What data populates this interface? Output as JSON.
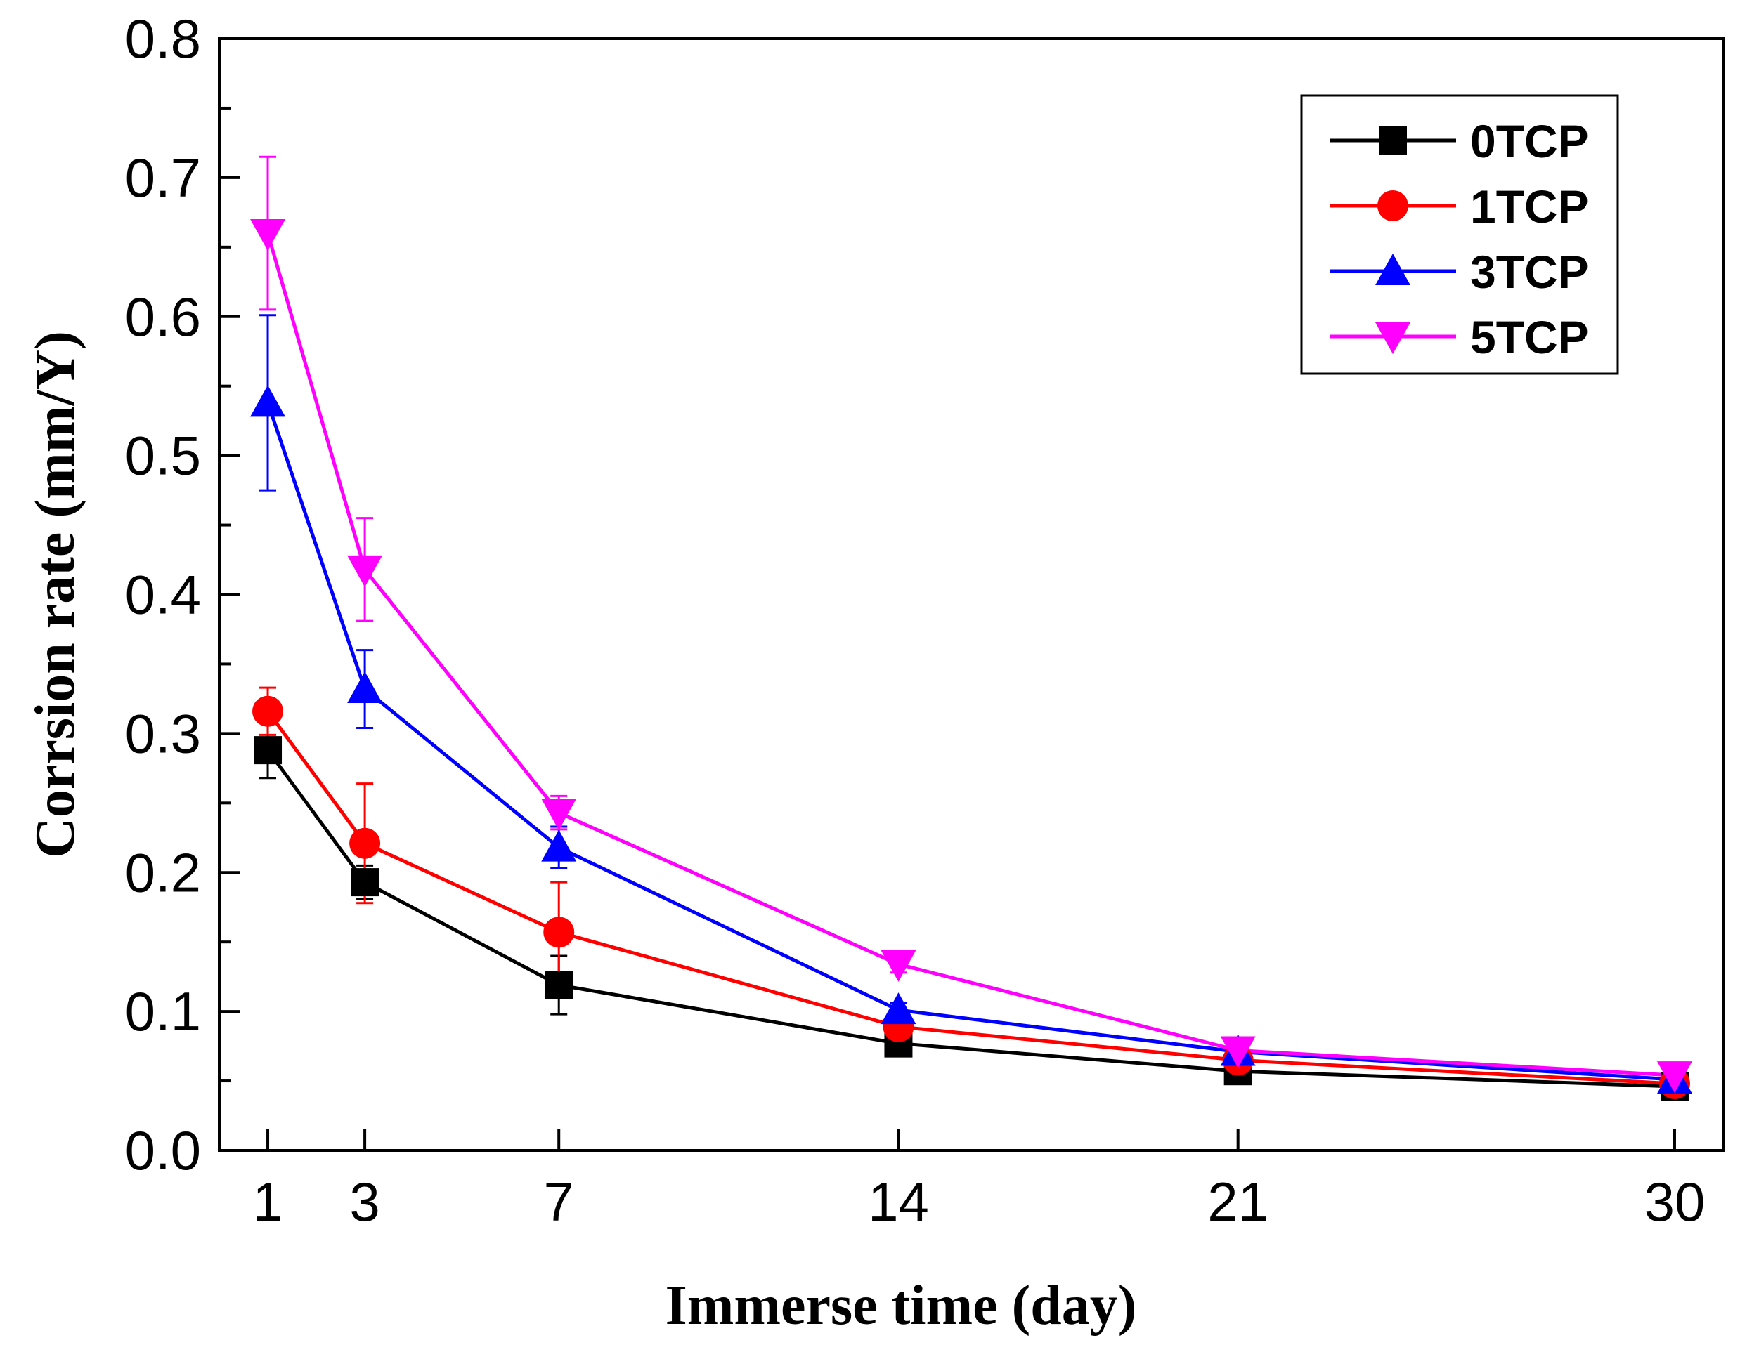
{
  "chart_data": {
    "type": "line",
    "title": "",
    "xlabel": "Immerse time (day)",
    "ylabel": "Corrsion rate (mm/Y)",
    "x": [
      1,
      3,
      7,
      14,
      21,
      30
    ],
    "x_tick_labels": [
      "1",
      "3",
      "7",
      "14",
      "21",
      "30"
    ],
    "y_tick_labels": [
      "0.0",
      "0.1",
      "0.2",
      "0.3",
      "0.4",
      "0.5",
      "0.6",
      "0.7",
      "0.8"
    ],
    "xlim": [
      0,
      31
    ],
    "ylim": [
      0,
      0.8
    ],
    "grid": false,
    "legend_position": "top-right",
    "series": [
      {
        "name": "0TCP",
        "color": "#000000",
        "marker": "square",
        "values": [
          0.288,
          0.193,
          0.119,
          0.077,
          0.057,
          0.046
        ],
        "errors": [
          0.02,
          0.012,
          0.021,
          0.004,
          0.004,
          0.003
        ]
      },
      {
        "name": "1TCP",
        "color": "#ff0000",
        "marker": "circle",
        "values": [
          0.316,
          0.221,
          0.157,
          0.089,
          0.065,
          0.048
        ],
        "errors": [
          0.017,
          0.043,
          0.036,
          0.005,
          0.004,
          0.003
        ]
      },
      {
        "name": "3TCP",
        "color": "#0000ff",
        "marker": "triangle-up",
        "values": [
          0.538,
          0.332,
          0.218,
          0.101,
          0.071,
          0.051
        ],
        "errors": [
          0.063,
          0.028,
          0.015,
          0.005,
          0.004,
          0.003
        ]
      },
      {
        "name": "5TCP",
        "color": "#ff00ff",
        "marker": "triangle-down",
        "values": [
          0.66,
          0.418,
          0.243,
          0.134,
          0.072,
          0.054
        ],
        "errors": [
          0.055,
          0.037,
          0.012,
          0.006,
          0.004,
          0.003
        ]
      }
    ]
  }
}
